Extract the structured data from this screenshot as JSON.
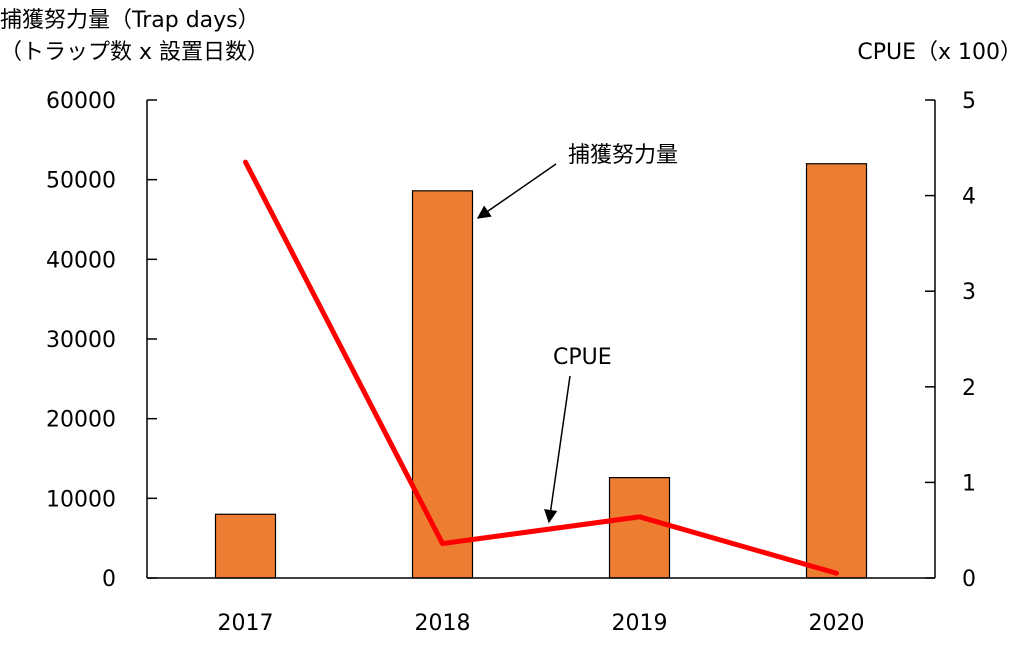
{
  "chart_data": {
    "type": "bar+line",
    "categories": [
      "2017",
      "2018",
      "2019",
      "2020"
    ],
    "series": [
      {
        "name": "捕獲努力量",
        "type": "bar",
        "axis": "left",
        "values": [
          8000,
          48600,
          12600,
          52000
        ]
      },
      {
        "name": "CPUE",
        "type": "line",
        "axis": "right",
        "values": [
          4.35,
          0.36,
          0.64,
          0.05
        ]
      }
    ],
    "ylabel_left_line1": "捕獲努力量（Trap days）",
    "ylabel_left_line2": "（トラップ数 x 設置日数）",
    "ylabel_right": "CPUE（x 100）",
    "ylim_left": [
      0,
      60000
    ],
    "ylim_right": [
      0,
      5
    ],
    "yticks_left": [
      0,
      10000,
      20000,
      30000,
      40000,
      50000,
      60000
    ],
    "yticks_right": [
      0,
      1,
      2,
      3,
      4,
      5
    ],
    "annotations": [
      {
        "text": "捕獲努力量",
        "points_to": "2018 bar"
      },
      {
        "text": "CPUE",
        "points_to": "CPUE line"
      }
    ],
    "grid": false,
    "legend": "none",
    "colors": {
      "bar": "#ed7d31",
      "line": "#ff0000",
      "axis": "#000000"
    }
  }
}
